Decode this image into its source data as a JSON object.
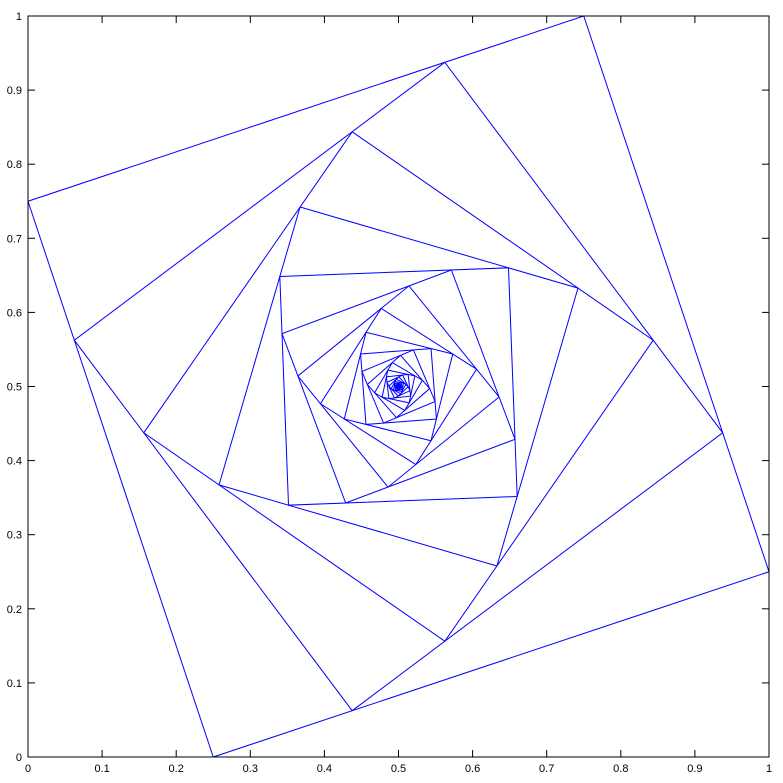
{
  "chart_data": {
    "type": "line",
    "title": "",
    "xlabel": "",
    "ylabel": "",
    "xlim": [
      0,
      1
    ],
    "ylim": [
      0,
      1
    ],
    "grid": false,
    "box": true,
    "xticks": [
      "0",
      "0.1",
      "0.2",
      "0.3",
      "0.4",
      "0.5",
      "0.6",
      "0.7",
      "0.8",
      "0.9",
      "1"
    ],
    "yticks": [
      "0",
      "0.1",
      "0.2",
      "0.3",
      "0.4",
      "0.5",
      "0.6",
      "0.7",
      "0.8",
      "0.9",
      "1"
    ],
    "line_color": "#0000ff",
    "series": [
      {
        "kind": "nested-squares",
        "initial_square": [
          [
            0,
            0
          ],
          [
            1,
            0
          ],
          [
            1,
            1
          ],
          [
            0,
            1
          ]
        ],
        "edge_fraction": 0.25,
        "square_count": 45
      }
    ]
  }
}
